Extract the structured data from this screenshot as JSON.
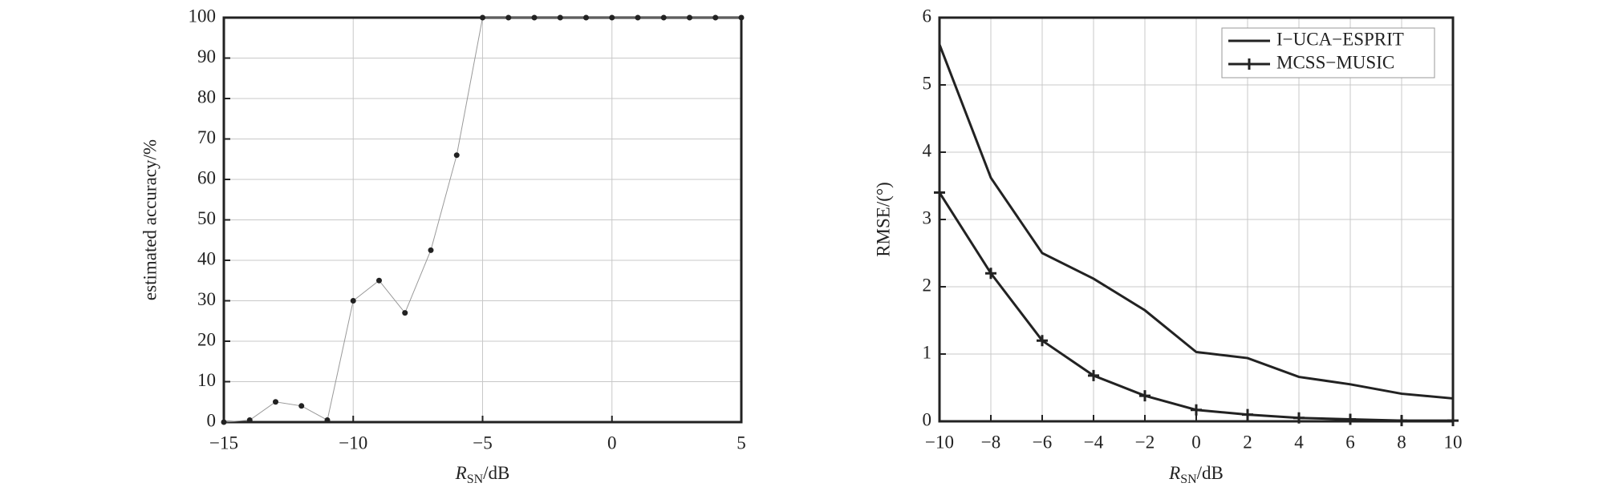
{
  "chart_data": [
    {
      "type": "line",
      "y_label": "estimated accuracy/%",
      "x_label": {
        "symbol": "R",
        "subscript": "SN",
        "unit": "/dB"
      },
      "x": [
        -15,
        -14,
        -13,
        -12,
        -11,
        -10,
        -9,
        -8,
        -7,
        -6,
        -5,
        -4,
        -3,
        -2,
        -1,
        0,
        1,
        2,
        3,
        4,
        5
      ],
      "values": [
        0,
        0.5,
        5,
        4,
        0.5,
        30,
        35,
        27,
        42.5,
        66,
        100,
        100,
        100,
        100,
        100,
        100,
        100,
        100,
        100,
        100,
        100
      ],
      "color": "#999999",
      "marker": "dot",
      "marker_color": "#222222",
      "xlim": [
        -15,
        5
      ],
      "xticks": [
        {
          "value": -15,
          "label": "−15"
        },
        {
          "value": -10,
          "label": "−10"
        },
        {
          "value": -5,
          "label": "−5"
        },
        0,
        5
      ],
      "ylim": [
        0,
        100
      ],
      "yticks": [
        0,
        10,
        20,
        30,
        40,
        50,
        60,
        70,
        80,
        90,
        100
      ],
      "grid": true
    },
    {
      "type": "line",
      "y_label": "RMSE/(°)",
      "x_label": {
        "symbol": "R",
        "subscript": "SN",
        "unit": "/dB"
      },
      "x": [
        -10,
        -8,
        -6,
        -4,
        -2,
        0,
        2,
        4,
        6,
        8,
        10
      ],
      "series": [
        {
          "name": "I−UCA−ESPRIT",
          "color": "#222222",
          "marker": "none",
          "values": [
            5.6,
            3.62,
            2.5,
            2.12,
            1.65,
            1.03,
            0.94,
            0.66,
            0.55,
            0.41,
            0.34
          ]
        },
        {
          "name": "MCSS−MUSIC",
          "color": "#222222",
          "marker": "plus",
          "values": [
            3.4,
            2.2,
            1.2,
            0.68,
            0.38,
            0.17,
            0.1,
            0.05,
            0.03,
            0.01,
            0.01
          ]
        }
      ],
      "xlim": [
        -10,
        10
      ],
      "xticks": [
        {
          "value": -10,
          "label": "−10"
        },
        {
          "value": -8,
          "label": "−8"
        },
        {
          "value": -6,
          "label": "−6"
        },
        {
          "value": -4,
          "label": "−4"
        },
        {
          "value": -2,
          "label": "−2"
        },
        0,
        2,
        4,
        6,
        8,
        10
      ],
      "ylim": [
        0,
        6
      ],
      "yticks": [
        0,
        1,
        2,
        3,
        4,
        5,
        6
      ],
      "grid": true,
      "legend": "top-right"
    }
  ]
}
